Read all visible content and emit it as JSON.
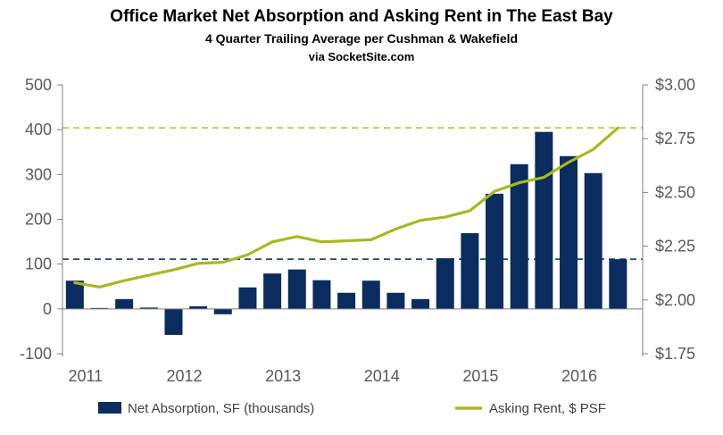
{
  "title": "Office Market Net Absorption and Asking Rent in The East Bay",
  "subtitle": "4 Quarter Trailing Average per Cushman & Wakefield",
  "source": "via SocketSite.com",
  "colors": {
    "bars": "#0b2c5e",
    "line": "#a8b820",
    "ref_bar": "#264a6e",
    "ref_line": "#c4cc2a",
    "axis": "#7f7f7f"
  },
  "chart_data": {
    "type": "bar",
    "categories": [
      "2011 Q1",
      "2011 Q2",
      "2011 Q3",
      "2011 Q4",
      "2012 Q1",
      "2012 Q2",
      "2012 Q3",
      "2012 Q4",
      "2013 Q1",
      "2013 Q2",
      "2013 Q3",
      "2013 Q4",
      "2014 Q1",
      "2014 Q2",
      "2014 Q3",
      "2014 Q4",
      "2015 Q1",
      "2015 Q2",
      "2015 Q3",
      "2015 Q4",
      "2016 Q1",
      "2016 Q2",
      "2016 Q3"
    ],
    "x_tick_labels": [
      "2011",
      "2012",
      "2013",
      "2014",
      "2015",
      "2016"
    ],
    "series": [
      {
        "name": "Net Absorption, SF (thousands)",
        "axis": "left",
        "type": "bar",
        "values": [
          63,
          2,
          22,
          3,
          -58,
          6,
          -12,
          48,
          79,
          88,
          64,
          36,
          63,
          36,
          22,
          113,
          169,
          257,
          323,
          395,
          341,
          303,
          111
        ]
      },
      {
        "name": "Asking Rent, $ PSF",
        "axis": "right",
        "type": "line",
        "values": [
          2.08,
          2.06,
          2.09,
          2.115,
          2.14,
          2.17,
          2.175,
          2.21,
          2.27,
          2.295,
          2.27,
          2.275,
          2.28,
          2.33,
          2.37,
          2.385,
          2.415,
          2.505,
          2.545,
          2.57,
          2.64,
          2.7,
          2.8
        ]
      }
    ],
    "left_axis": {
      "ylim": [
        -100,
        500
      ],
      "ticks": [
        "-100",
        "0",
        "100",
        "200",
        "300",
        "400",
        "500"
      ]
    },
    "right_axis": {
      "ylim": [
        1.75,
        3.0
      ],
      "ticks": [
        "$1.75",
        "$2.00",
        "$2.25",
        "$2.50",
        "$2.75",
        "$3.00"
      ]
    },
    "reference_lines": [
      {
        "axis": "left",
        "value": 111
      },
      {
        "axis": "right",
        "value": 2.8
      }
    ],
    "legend_placement": "bottom",
    "grid": false
  }
}
